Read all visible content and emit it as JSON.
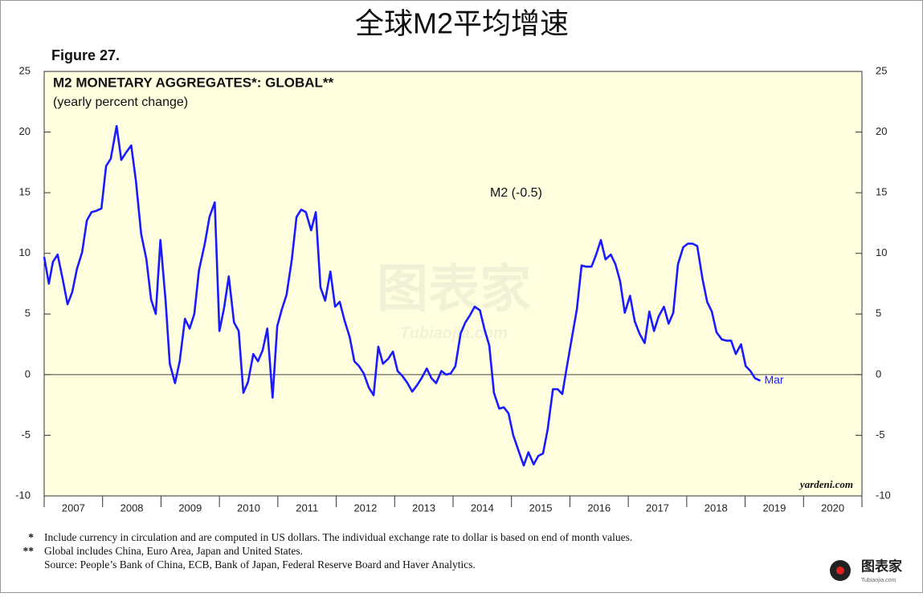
{
  "page_title": "全球M2平均增速",
  "chart_data": {
    "type": "line",
    "figure_label": "Figure 27.",
    "title": "M2 MONETARY AGGREGATES*: GLOBAL**",
    "subtitle": "(yearly percent change)",
    "series_label": "M2  (-0.5)",
    "end_label": "Mar",
    "credit": "yardeni.com",
    "categories": [
      "2007",
      "2008",
      "2009",
      "2010",
      "2011",
      "2012",
      "2013",
      "2014",
      "2015",
      "2016",
      "2017",
      "2018",
      "2019",
      "2020"
    ],
    "xlim": [
      2007,
      2021
    ],
    "xticks": [
      2007,
      2008,
      2009,
      2010,
      2011,
      2012,
      2013,
      2014,
      2015,
      2016,
      2017,
      2018,
      2019,
      2020,
      2021
    ],
    "ylim": [
      -10,
      25
    ],
    "yticks": [
      -10,
      -5,
      0,
      5,
      10,
      15,
      20,
      25
    ],
    "y2lim": [
      -10,
      25
    ],
    "y2ticks": [
      -10,
      -5,
      0,
      5,
      10,
      15,
      20,
      25
    ],
    "x": [
      2007.0,
      2007.08,
      2007.15,
      2007.23,
      2007.32,
      2007.4,
      2007.48,
      2007.56,
      2007.65,
      2007.73,
      2007.81,
      2007.89,
      2007.98,
      2008.06,
      2008.14,
      2008.24,
      2008.32,
      2008.4,
      2008.49,
      2008.57,
      2008.66,
      2008.75,
      2008.83,
      2008.91,
      2008.99,
      2009.08,
      2009.15,
      2009.24,
      2009.32,
      2009.41,
      2009.49,
      2009.57,
      2009.65,
      2009.75,
      2009.83,
      2009.92,
      2010.0,
      2010.08,
      2010.16,
      2010.25,
      2010.33,
      2010.41,
      2010.49,
      2010.58,
      2010.66,
      2010.74,
      2010.82,
      2010.91,
      2010.99,
      2011.07,
      2011.15,
      2011.24,
      2011.32,
      2011.4,
      2011.48,
      2011.57,
      2011.65,
      2011.73,
      2011.81,
      2011.9,
      2011.98,
      2012.06,
      2012.14,
      2012.23,
      2012.31,
      2012.39,
      2012.47,
      2012.56,
      2012.64,
      2012.72,
      2012.8,
      2012.89,
      2012.97,
      2013.05,
      2013.13,
      2013.22,
      2013.3,
      2013.38,
      2013.46,
      2013.55,
      2013.63,
      2013.71,
      2013.8,
      2013.88,
      2013.96,
      2014.04,
      2014.13,
      2014.21,
      2014.29,
      2014.37,
      2014.46,
      2014.54,
      2014.62,
      2014.7,
      2014.79,
      2014.87,
      2014.95,
      2015.03,
      2015.13,
      2015.21,
      2015.29,
      2015.38,
      2015.46,
      2015.54,
      2015.62,
      2015.71,
      2015.79,
      2015.87,
      2015.95,
      2016.04,
      2016.12,
      2016.2,
      2016.28,
      2016.37,
      2016.45,
      2016.53,
      2016.61,
      2016.7,
      2016.78,
      2016.86,
      2016.94,
      2017.03,
      2017.11,
      2017.19,
      2017.28,
      2017.36,
      2017.44,
      2017.52,
      2017.61,
      2017.69,
      2017.77,
      2017.85,
      2017.94,
      2018.02,
      2018.1,
      2018.18,
      2018.27,
      2018.35,
      2018.43,
      2018.51,
      2018.6,
      2018.68,
      2018.76,
      2018.84,
      2018.93,
      2019.01,
      2019.09,
      2019.17,
      2019.26
    ],
    "series": [
      {
        "color": "#1a1aff",
        "values": [
          9.7,
          7.5,
          9.3,
          9.9,
          7.8,
          5.8,
          6.8,
          8.7,
          10.1,
          12.7,
          13.4,
          13.5,
          13.7,
          17.2,
          17.8,
          20.5,
          17.7,
          18.3,
          18.9,
          16.0,
          11.6,
          9.5,
          6.2,
          5.0,
          11.1,
          6.0,
          0.9,
          -0.7,
          1.1,
          4.6,
          3.8,
          5.0,
          8.6,
          10.8,
          13.0,
          14.2,
          3.6,
          5.5,
          8.1,
          4.3,
          3.6,
          -1.5,
          -0.6,
          1.7,
          1.1,
          2.0,
          3.8,
          -1.9,
          4.0,
          5.4,
          6.6,
          9.5,
          13.0,
          13.6,
          13.4,
          11.9,
          13.4,
          7.2,
          6.1,
          8.5,
          5.6,
          6.0,
          4.5,
          3.1,
          1.1,
          0.7,
          0.1,
          -1.1,
          -1.7,
          2.3,
          0.9,
          1.3,
          1.9,
          0.3,
          -0.1,
          -0.7,
          -1.4,
          -0.9,
          -0.3,
          0.5,
          -0.3,
          -0.7,
          0.3,
          0.0,
          0.1,
          0.7,
          3.4,
          4.3,
          4.9,
          5.6,
          5.3,
          3.7,
          2.4,
          -1.5,
          -2.8,
          -2.7,
          -3.2,
          -5.0,
          -6.4,
          -7.5,
          -6.4,
          -7.4,
          -6.7,
          -6.5,
          -4.5,
          -1.2,
          -1.2,
          -1.6,
          0.7,
          3.2,
          5.4,
          9.0,
          8.9,
          8.9,
          9.9,
          11.1,
          9.5,
          9.9,
          9.1,
          7.7,
          5.1,
          6.5,
          4.4,
          3.4,
          2.6,
          5.2,
          3.6,
          4.8,
          5.6,
          4.2,
          5.1,
          9.1,
          10.5,
          10.8,
          10.8,
          10.6,
          7.9,
          6.0,
          5.2,
          3.5,
          2.9,
          2.8,
          2.8,
          1.7,
          2.5,
          0.7,
          0.3,
          -0.3,
          -0.5
        ]
      }
    ]
  },
  "footnotes": [
    {
      "mark": "*",
      "text": "Include currency in circulation and are computed in US dollars.  The individual exchange rate to dollar is based on end of month values."
    },
    {
      "mark": "**",
      "text": "Global includes China, Euro Area, Japan and United States."
    },
    {
      "mark": "",
      "text": "Source: People’s Bank of China, ECB, Bank of Japan, Federal Reserve Board and Haver Analytics."
    }
  ],
  "watermark": {
    "name": "图表家",
    "site": "Tubiaojia.com"
  }
}
